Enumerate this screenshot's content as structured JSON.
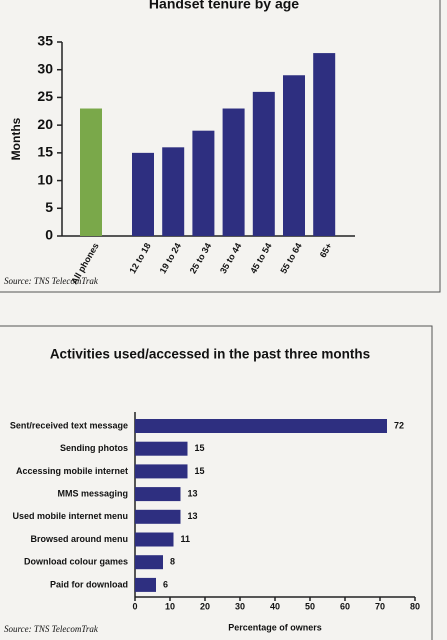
{
  "chart_data": [
    {
      "type": "bar",
      "title": "Handset tenure by age",
      "y_label": "Months",
      "categories": [
        "All phones",
        "12 to 18",
        "19 to 24",
        "25 to 34",
        "35 to 44",
        "45 to 54",
        "55 to 64",
        "65+"
      ],
      "values": [
        23,
        15,
        16,
        19,
        23,
        26,
        29,
        33
      ],
      "colors": [
        "#7aa84a",
        "#2e2f80",
        "#2e2f80",
        "#2e2f80",
        "#2e2f80",
        "#2e2f80",
        "#2e2f80",
        "#2e2f80"
      ],
      "ylim": [
        0,
        35
      ],
      "yticks": [
        0,
        5,
        10,
        15,
        20,
        25,
        30,
        35
      ],
      "source": "Source: TNS TelecomTrak"
    },
    {
      "type": "barh",
      "title": "Activities used/accessed in the past three months",
      "x_label": "Percentage of owners",
      "categories": [
        "Sent/received text message",
        "Sending photos",
        "Accessing mobile internet",
        "MMS messaging",
        "Used mobile internet menu",
        "Browsed around menu",
        "Download colour games",
        "Paid for download"
      ],
      "values": [
        72,
        15,
        15,
        13,
        13,
        11,
        8,
        6
      ],
      "color": "#2e2f80",
      "xlim": [
        0,
        80
      ],
      "xticks": [
        0,
        10,
        20,
        30,
        40,
        50,
        60,
        70,
        80
      ],
      "source": "Source: TNS TelecomTrak"
    }
  ]
}
